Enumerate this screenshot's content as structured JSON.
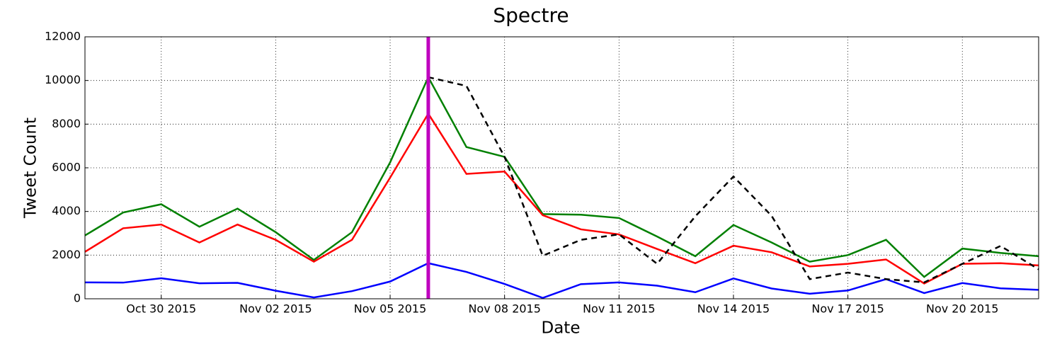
{
  "chart_data": {
    "type": "line",
    "title": "Spectre",
    "x_label": "Date",
    "y_label": "Tweet Count",
    "x": [
      "2015-10-28",
      "2015-10-29",
      "2015-10-30",
      "2015-10-31",
      "2015-11-01",
      "2015-11-02",
      "2015-11-03",
      "2015-11-04",
      "2015-11-05",
      "2015-11-06",
      "2015-11-07",
      "2015-11-08",
      "2015-11-09",
      "2015-11-10",
      "2015-11-11",
      "2015-11-12",
      "2015-11-13",
      "2015-11-14",
      "2015-11-15",
      "2015-11-16",
      "2015-11-17",
      "2015-11-18",
      "2015-11-19",
      "2015-11-20",
      "2015-11-21",
      "2015-11-22"
    ],
    "series": [
      {
        "color": "#008000",
        "values": [
          2900,
          3950,
          4330,
          3300,
          4130,
          3050,
          1780,
          3050,
          6250,
          10150,
          6950,
          6500,
          3880,
          3850,
          3700,
          2850,
          1950,
          3380,
          2580,
          1700,
          2000,
          2700,
          1000,
          2300,
          2100,
          1950
        ]
      },
      {
        "color": "#ff0000",
        "values": [
          2150,
          3230,
          3400,
          2580,
          3400,
          2700,
          1700,
          2700,
          5550,
          8480,
          5720,
          5830,
          3830,
          3180,
          2950,
          2280,
          1630,
          2430,
          2130,
          1480,
          1600,
          1800,
          700,
          1600,
          1630,
          1530
        ]
      },
      {
        "color": "#0000ff",
        "values": [
          750,
          740,
          940,
          710,
          730,
          370,
          60,
          350,
          790,
          1630,
          1230,
          680,
          40,
          670,
          750,
          600,
          300,
          930,
          470,
          230,
          380,
          900,
          260,
          720,
          480,
          410
        ]
      },
      {
        "color": "#000000",
        "dashed": true,
        "values": [
          null,
          null,
          null,
          null,
          null,
          null,
          null,
          null,
          null,
          10150,
          9750,
          6500,
          1970,
          2700,
          2950,
          1600,
          3780,
          5600,
          3800,
          900,
          1200,
          900,
          750,
          1600,
          2420,
          1350
        ]
      }
    ],
    "vline": {
      "x": "2015-11-06",
      "color": "#bf00bf"
    },
    "xlim": [
      "2015-10-28",
      "2015-11-22"
    ],
    "xticks": [
      {
        "value": "2015-10-30",
        "label": "Oct 30 2015"
      },
      {
        "value": "2015-11-02",
        "label": "Nov 02 2015"
      },
      {
        "value": "2015-11-05",
        "label": "Nov 05 2015"
      },
      {
        "value": "2015-11-08",
        "label": "Nov 08 2015"
      },
      {
        "value": "2015-11-11",
        "label": "Nov 11 2015"
      },
      {
        "value": "2015-11-14",
        "label": "Nov 14 2015"
      },
      {
        "value": "2015-11-17",
        "label": "Nov 17 2015"
      },
      {
        "value": "2015-11-20",
        "label": "Nov 20 2015"
      }
    ],
    "ylim": [
      0,
      12000
    ],
    "yticks": [
      0,
      2000,
      4000,
      6000,
      8000,
      10000,
      12000
    ],
    "grid": true
  }
}
